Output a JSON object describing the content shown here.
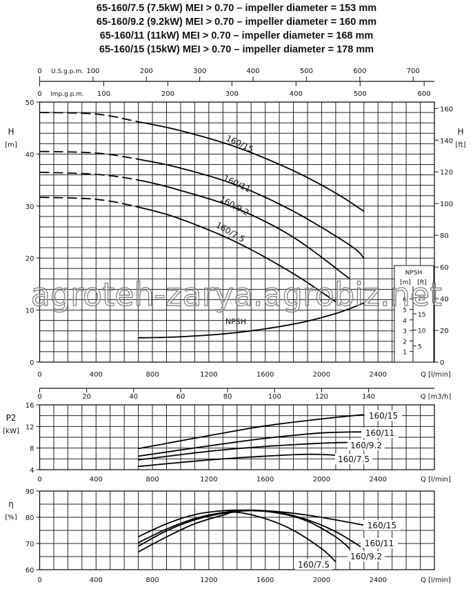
{
  "titles": [
    "65-160/7.5 (7.5kW) MEI > 0.70 – impeller diameter = 153 mm",
    "65-160/9.2 (9.2kW) MEI > 0.70 – impeller diameter = 160 mm",
    "65-160/11  (11kW) MEI > 0.70 – impeller diameter = 168 mm",
    "65-160/15  (15kW) MEI > 0.70 – impeller diameter = 178 mm"
  ],
  "watermark": "agroteh-zarya.agrobiz.net",
  "chart_data": [
    {
      "type": "line",
      "id": "head",
      "ylabel": "H",
      "yunit": "[m]",
      "ylabel_right": "H",
      "yunit_right": "[ft]",
      "xlabel": "Q [l/min]",
      "xlim": [
        0,
        2800
      ],
      "ylim": [
        0,
        50
      ],
      "xticks": [
        0,
        400,
        800,
        1200,
        1600,
        2000,
        2400
      ],
      "yticks": [
        0,
        10,
        20,
        30,
        40,
        50
      ],
      "yticks_right_ft": [
        0,
        20,
        40,
        60,
        80,
        100,
        120,
        140,
        160
      ],
      "grid": true,
      "top_axes": [
        {
          "label": "U.S.g.p.m.",
          "ticks": [
            0,
            100,
            200,
            300,
            400,
            500,
            600,
            700
          ],
          "l_per_unit": 3.785
        },
        {
          "label": "Imp.g.p.m.",
          "ticks": [
            0,
            100,
            200,
            300,
            400,
            500,
            600
          ],
          "l_per_unit": 4.546
        }
      ],
      "series": [
        {
          "name": "160/15",
          "dashed_until": 700,
          "x": [
            0,
            400,
            700,
            1000,
            1400,
            1800,
            2100,
            2300
          ],
          "y": [
            48,
            47.7,
            46.2,
            44.5,
            41.3,
            36.8,
            32.5,
            29
          ]
        },
        {
          "name": "160/11",
          "dashed_until": 700,
          "x": [
            0,
            400,
            700,
            1000,
            1400,
            1800,
            2200,
            2300
          ],
          "y": [
            40.5,
            40.2,
            39,
            37.3,
            34,
            29,
            22.5,
            20
          ]
        },
        {
          "name": "160/9.2",
          "dashed_until": 700,
          "x": [
            0,
            400,
            700,
            1000,
            1400,
            1800,
            2200
          ],
          "y": [
            36.5,
            36.1,
            35,
            33,
            29.5,
            24,
            16
          ]
        },
        {
          "name": "160/7.5",
          "dashed_until": 700,
          "x": [
            0,
            400,
            700,
            1000,
            1400,
            1800,
            2100
          ],
          "y": [
            31.7,
            31.3,
            29.8,
            27.5,
            23,
            17,
            11.6
          ]
        }
      ],
      "npsh": {
        "name": "NPSH",
        "box_title": "NPSH",
        "unit_m": "[m]",
        "unit_ft": "[ft]",
        "ticks_m": [
          1,
          2,
          3,
          4,
          5,
          6
        ],
        "ticks_ft": [
          5,
          10,
          15,
          20
        ],
        "x": [
          700,
          1000,
          1400,
          1800,
          2100,
          2300
        ],
        "y": [
          2.3,
          2.4,
          2.8,
          3.6,
          4.6,
          5.6
        ]
      }
    },
    {
      "type": "axis",
      "id": "flow-m3h",
      "xlabel": "Q [m3/h]",
      "xticks": [
        0,
        20,
        40,
        60,
        80,
        100,
        120,
        140
      ]
    },
    {
      "type": "line",
      "id": "power",
      "ylabel": "P2",
      "yunit": "[kW]",
      "xlabel": "Q [l/min]",
      "xlim": [
        0,
        2800
      ],
      "ylim": [
        4,
        16
      ],
      "xticks": [
        0,
        400,
        800,
        1200,
        1600,
        2000,
        2400
      ],
      "yticks": [
        4,
        8,
        12,
        16
      ],
      "grid": true,
      "series": [
        {
          "name": "160/15",
          "x": [
            700,
            1200,
            1600,
            2000,
            2300
          ],
          "y": [
            7.9,
            10.3,
            12.1,
            13.4,
            14.2
          ]
        },
        {
          "name": "160/11",
          "x": [
            700,
            1200,
            1600,
            2000,
            2300
          ],
          "y": [
            6.5,
            8.4,
            9.8,
            10.8,
            11.0
          ]
        },
        {
          "name": "160/9.2",
          "x": [
            700,
            1200,
            1600,
            2000,
            2200
          ],
          "y": [
            5.8,
            7.4,
            8.3,
            8.9,
            9.05
          ]
        },
        {
          "name": "160/7.5",
          "x": [
            700,
            1200,
            1600,
            1900,
            2100
          ],
          "y": [
            4.6,
            5.8,
            6.5,
            6.85,
            6.7
          ]
        }
      ]
    },
    {
      "type": "line",
      "id": "efficiency",
      "ylabel": "η",
      "yunit": "[%]",
      "xlabel": "Q [l/min]",
      "xlim": [
        0,
        2800
      ],
      "ylim": [
        60,
        90
      ],
      "xticks": [
        0,
        400,
        800,
        1200,
        1600,
        2000,
        2400
      ],
      "yticks": [
        60,
        70,
        80,
        90
      ],
      "grid": true,
      "series": [
        {
          "name": "160/15",
          "x": [
            700,
            900,
            1100,
            1300,
            1500,
            1700,
            1900,
            2100,
            2300
          ],
          "y": [
            72.6,
            77.5,
            81,
            82.5,
            82.7,
            82.1,
            80.8,
            79,
            77
          ]
        },
        {
          "name": "160/11",
          "x": [
            700,
            900,
            1100,
            1300,
            1500,
            1700,
            1900,
            2100,
            2300
          ],
          "y": [
            70.3,
            75.5,
            79.5,
            81.8,
            82.7,
            81.8,
            79,
            74.5,
            68
          ]
        },
        {
          "name": "160/9.2",
          "x": [
            700,
            900,
            1100,
            1300,
            1500,
            1700,
            1900,
            2100,
            2200
          ],
          "y": [
            69,
            74.8,
            79,
            81.5,
            82.5,
            81.5,
            78.5,
            72.5,
            68
          ]
        },
        {
          "name": "160/7.5",
          "x": [
            700,
            900,
            1100,
            1300,
            1400,
            1600,
            1800,
            2000,
            2100
          ],
          "y": [
            66.8,
            72.5,
            77.5,
            80.8,
            81.9,
            79.5,
            75,
            68,
            63
          ]
        }
      ]
    }
  ]
}
